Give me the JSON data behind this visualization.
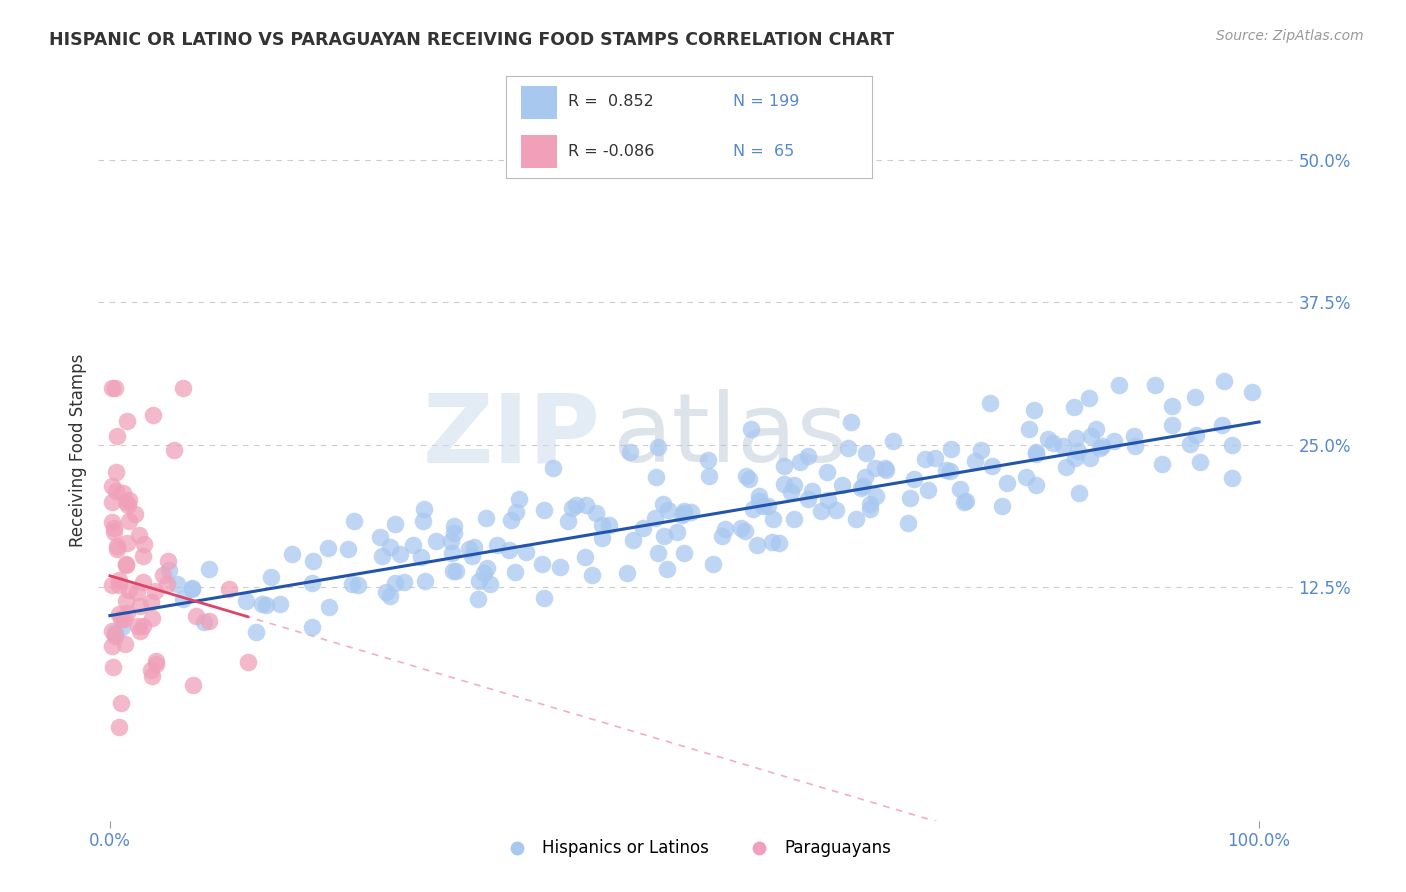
{
  "title": "HISPANIC OR LATINO VS PARAGUAYAN RECEIVING FOOD STAMPS CORRELATION CHART",
  "source_text": "Source: ZipAtlas.com",
  "ylabel": "Receiving Food Stamps",
  "blue_color": "#A8C8F0",
  "pink_color": "#F0A0B8",
  "line_blue": "#2255AA",
  "line_pink": "#DD4466",
  "line_pink_dash_color": "#F0B0C0",
  "watermark_zip": "ZIP",
  "watermark_atlas": "atlas",
  "title_color": "#333333",
  "tick_color": "#5588CC",
  "grid_color": "#CCCCCC",
  "blue_r": 0.852,
  "blue_n": 199,
  "pink_r": -0.086,
  "pink_n": 65,
  "blue_intercept": 0.1,
  "blue_slope": 0.17,
  "pink_intercept": 0.135,
  "pink_slope": -0.3,
  "xlim": [
    -0.01,
    1.03
  ],
  "ylim": [
    -0.08,
    0.57
  ],
  "x_ticks": [
    0.0,
    1.0
  ],
  "x_tick_labels": [
    "0.0%",
    "100.0%"
  ],
  "y_ticks": [
    0.125,
    0.25,
    0.375,
    0.5
  ],
  "y_tick_labels": [
    "12.5%",
    "25.0%",
    "37.5%",
    "50.0%"
  ]
}
